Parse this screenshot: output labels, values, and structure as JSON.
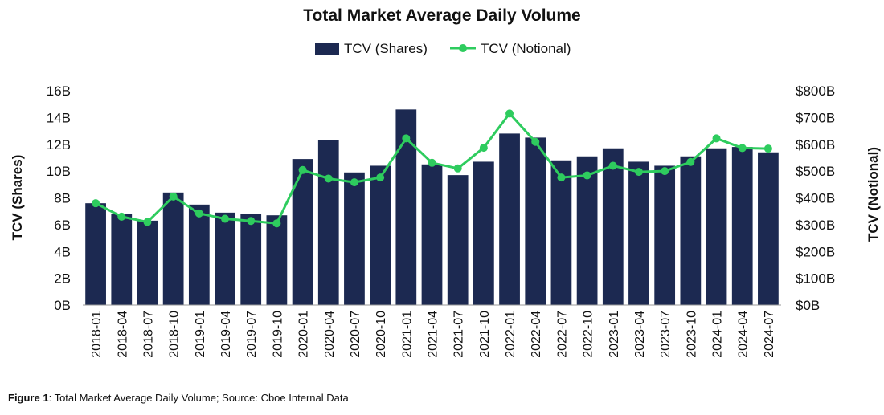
{
  "chart_data": {
    "type": "bar",
    "title": "Total Market Average Daily Volume",
    "ylabel_left": "TCV (Shares)",
    "ylabel_right": "TCV (Notional)",
    "ylim_left": [
      0,
      16
    ],
    "ylim_right": [
      0,
      800
    ],
    "yticks_left": [
      "0B",
      "2B",
      "4B",
      "6B",
      "8B",
      "10B",
      "12B",
      "14B",
      "16B"
    ],
    "yticks_right": [
      "$0B",
      "$100B",
      "$200B",
      "$300B",
      "$400B",
      "$500B",
      "$600B",
      "$700B",
      "$800B"
    ],
    "legend_position": "top",
    "categories": [
      "2018-01",
      "2018-04",
      "2018-07",
      "2018-10",
      "2019-01",
      "2019-04",
      "2019-07",
      "2019-10",
      "2020-01",
      "2020-04",
      "2020-07",
      "2020-10",
      "2021-01",
      "2021-04",
      "2021-07",
      "2021-10",
      "2022-01",
      "2022-04",
      "2022-07",
      "2022-10",
      "2023-01",
      "2023-04",
      "2023-07",
      "2023-10",
      "2024-01",
      "2024-04",
      "2024-07"
    ],
    "series": [
      {
        "name": "TCV (Shares)",
        "type": "bar",
        "axis": "left",
        "color": "#1c2951",
        "values": [
          7.6,
          6.8,
          6.3,
          8.4,
          7.5,
          6.9,
          6.8,
          6.7,
          10.9,
          12.3,
          9.9,
          10.4,
          14.6,
          10.5,
          9.7,
          10.7,
          12.8,
          12.5,
          10.8,
          11.1,
          11.7,
          10.7,
          10.4,
          11.1,
          11.7,
          11.8,
          11.4
        ]
      },
      {
        "name": "TCV (Notional)",
        "type": "line",
        "axis": "right",
        "color": "#2ecc5e",
        "values": [
          380,
          330,
          310,
          405,
          342,
          322,
          314,
          305,
          504,
          472,
          458,
          476,
          622,
          531,
          510,
          587,
          715,
          609,
          476,
          484,
          520,
          497,
          500,
          534,
          622,
          586,
          584
        ]
      }
    ]
  },
  "caption": {
    "label": "Figure 1",
    "text": ": Total Market Average Daily Volume; Source: Cboe Internal Data"
  }
}
